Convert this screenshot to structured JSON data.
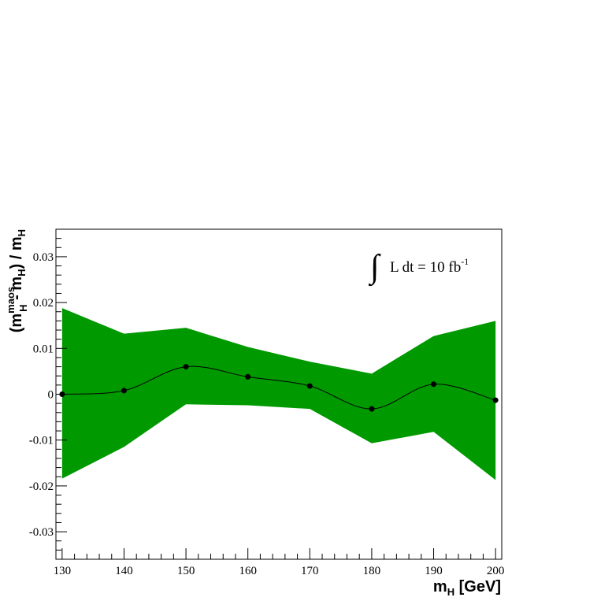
{
  "chart_data": {
    "type": "line",
    "x": [
      130,
      140,
      150,
      160,
      170,
      180,
      190,
      200
    ],
    "series": [
      {
        "values": [
          0.0,
          0.0008,
          0.006,
          0.0038,
          0.0018,
          -0.0032,
          0.0022,
          -0.0013
        ],
        "band_upper": [
          0.0188,
          0.0132,
          0.0145,
          0.0103,
          0.0071,
          0.0045,
          0.0127,
          0.016
        ],
        "band_lower": [
          -0.0184,
          -0.0115,
          -0.0022,
          -0.0024,
          -0.0032,
          -0.0107,
          -0.0082,
          -0.0187
        ]
      }
    ],
    "xlim": [
      129,
      201
    ],
    "ylim": [
      -0.036,
      0.036
    ],
    "xticks": [
      "130",
      "140",
      "150",
      "160",
      "170",
      "180",
      "190",
      "200"
    ],
    "yticks": [
      "-0.03",
      "-0.02",
      "-0.01",
      "0",
      "0.01",
      "0.02",
      "0.03"
    ],
    "xlabel": {
      "main": "m",
      "sub": "H",
      "rest": " [GeV]"
    },
    "ylabel": {
      "open": "(m",
      "sup": "maos",
      "sub1": "H",
      "mid": " - m",
      "sub2": "H",
      "close": ") / m",
      "sub3": "H"
    },
    "annotation": {
      "integral": "∫",
      "text": "L dt = 10 fb",
      "sup": "-1"
    },
    "colors": {
      "band": "#009900",
      "line": "#000000",
      "marker": "#000000",
      "frame": "#000000"
    },
    "grid": false,
    "legend": "none"
  }
}
